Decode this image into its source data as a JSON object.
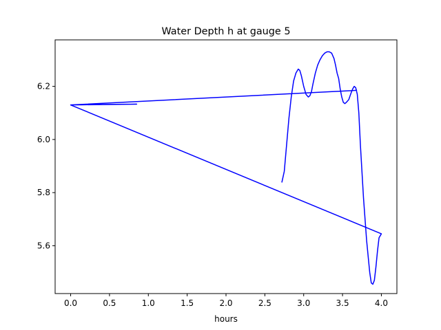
{
  "chart_data": {
    "type": "line",
    "title": "Water Depth h at gauge 5",
    "xlabel": "hours",
    "ylabel": "",
    "xlim": [
      -0.2,
      4.2
    ],
    "ylim": [
      5.42,
      6.375
    ],
    "grid": false,
    "x_ticks": [
      0.0,
      0.5,
      1.0,
      1.5,
      2.0,
      2.5,
      3.0,
      3.5,
      4.0
    ],
    "x_tick_labels": [
      "0.0",
      "0.5",
      "1.0",
      "1.5",
      "2.0",
      "2.5",
      "3.0",
      "3.5",
      "4.0"
    ],
    "y_ticks": [
      5.6,
      5.8,
      6.0,
      6.2
    ],
    "y_tick_labels": [
      "5.6",
      "5.8",
      "6.0",
      "6.2"
    ],
    "series": [
      {
        "color": "#0000ff",
        "x": [
          2.72,
          2.75,
          2.78,
          2.81,
          2.84,
          2.87,
          2.9,
          2.93,
          2.95,
          2.97,
          3.0,
          3.03,
          3.06,
          3.08,
          3.1,
          3.12,
          3.15,
          3.18,
          3.21,
          3.24,
          3.27,
          3.3,
          3.33,
          3.36,
          3.39,
          3.41,
          3.43,
          3.45,
          3.47,
          3.49,
          3.51,
          3.53,
          3.55,
          3.58,
          3.61,
          3.63,
          3.65,
          3.67,
          3.69,
          3.71,
          3.73,
          3.75,
          3.77,
          3.79,
          3.81,
          3.83,
          3.85,
          3.87,
          3.89,
          3.91,
          3.93,
          3.95,
          3.97,
          4.0,
          0.0,
          0.85,
          0.45,
          0.0,
          3.68
        ],
        "y": [
          5.84,
          5.88,
          5.98,
          6.08,
          6.16,
          6.22,
          6.25,
          6.265,
          6.26,
          6.24,
          6.2,
          6.17,
          6.16,
          6.165,
          6.18,
          6.21,
          6.25,
          6.28,
          6.3,
          6.315,
          6.325,
          6.33,
          6.33,
          6.325,
          6.305,
          6.28,
          6.25,
          6.23,
          6.19,
          6.16,
          6.14,
          6.135,
          6.14,
          6.15,
          6.175,
          6.19,
          6.2,
          6.195,
          6.17,
          6.1,
          5.98,
          5.88,
          5.78,
          5.7,
          5.62,
          5.56,
          5.5,
          5.46,
          5.455,
          5.47,
          5.52,
          5.58,
          5.63,
          5.645,
          6.13,
          6.133,
          6.132,
          6.13,
          6.185
        ]
      }
    ]
  }
}
